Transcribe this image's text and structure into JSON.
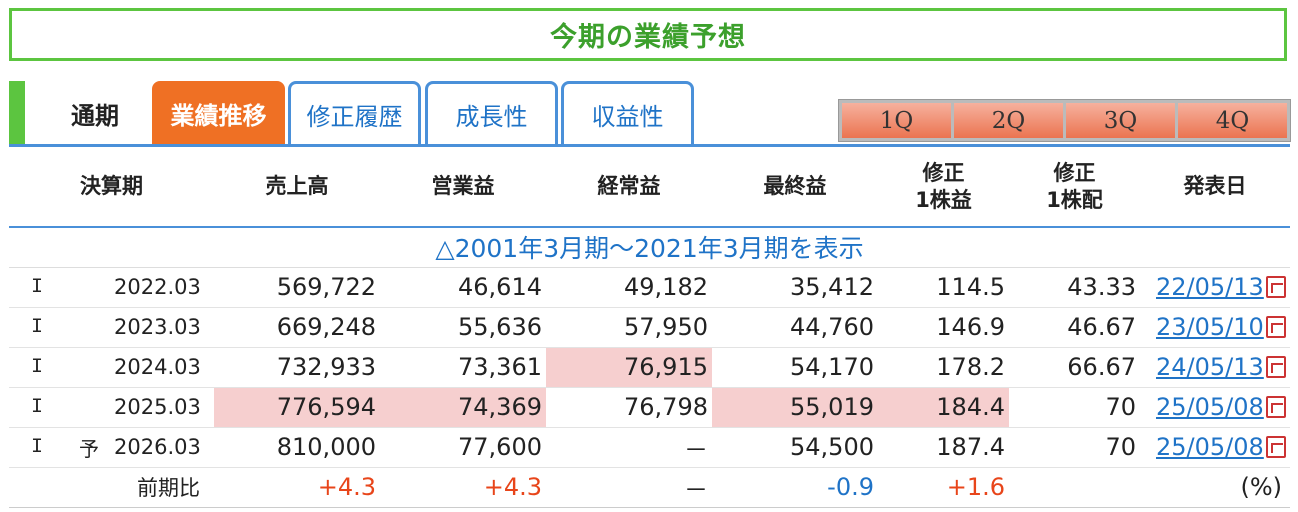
{
  "title": "今期の業績予想",
  "tabs": {
    "tsuki": "通期",
    "gyoseki": "業績推移",
    "shusei": "修正履歴",
    "seicho": "成長性",
    "shueki": "収益性"
  },
  "quarters": [
    "1Q",
    "2Q",
    "3Q",
    "4Q"
  ],
  "headers": {
    "period": "決算期",
    "sales": "売上高",
    "operating": "営業益",
    "ordinary": "経常益",
    "net": "最終益",
    "eps_line1": "修正",
    "eps_line2": "1株益",
    "div_line1": "修正",
    "div_line2": "1株配",
    "date": "発表日"
  },
  "expand_link": "△2001年3月期〜2021年3月期を表示",
  "rows": [
    {
      "kind": "I",
      "forecast": "",
      "period": "2022.03",
      "sales": "569,722",
      "operating": "46,614",
      "ordinary": "49,182",
      "net": "35,412",
      "eps": "114.5",
      "div": "43.33",
      "date": "22/05/13"
    },
    {
      "kind": "I",
      "forecast": "",
      "period": "2023.03",
      "sales": "669,248",
      "operating": "55,636",
      "ordinary": "57,950",
      "net": "44,760",
      "eps": "146.9",
      "div": "46.67",
      "date": "23/05/10"
    },
    {
      "kind": "I",
      "forecast": "",
      "period": "2024.03",
      "sales": "732,933",
      "operating": "73,361",
      "ordinary": "76,915",
      "net": "54,170",
      "eps": "178.2",
      "div": "66.67",
      "date": "24/05/13"
    },
    {
      "kind": "I",
      "forecast": "",
      "period": "2025.03",
      "sales": "776,594",
      "operating": "74,369",
      "ordinary": "76,798",
      "net": "55,019",
      "eps": "184.4",
      "div": "70",
      "date": "25/05/08"
    },
    {
      "kind": "I",
      "forecast": "予",
      "period": "2026.03",
      "sales": "810,000",
      "operating": "77,600",
      "ordinary": "－",
      "net": "54,500",
      "eps": "187.4",
      "div": "70",
      "date": "25/05/08"
    }
  ],
  "yoy": {
    "label": "前期比",
    "sales": "+4.3",
    "operating": "+4.3",
    "ordinary": "－",
    "net": "-0.9",
    "eps": "+1.6",
    "unit": "(%)"
  },
  "colors": {
    "accent_green": "#5cc540",
    "title_green": "#3ca02c",
    "active_tab": "#ef7024",
    "tab_blue": "#4a90d9",
    "highlight": "#f6cfcf",
    "positive": "#e8451a",
    "negative": "#1f73c7"
  }
}
